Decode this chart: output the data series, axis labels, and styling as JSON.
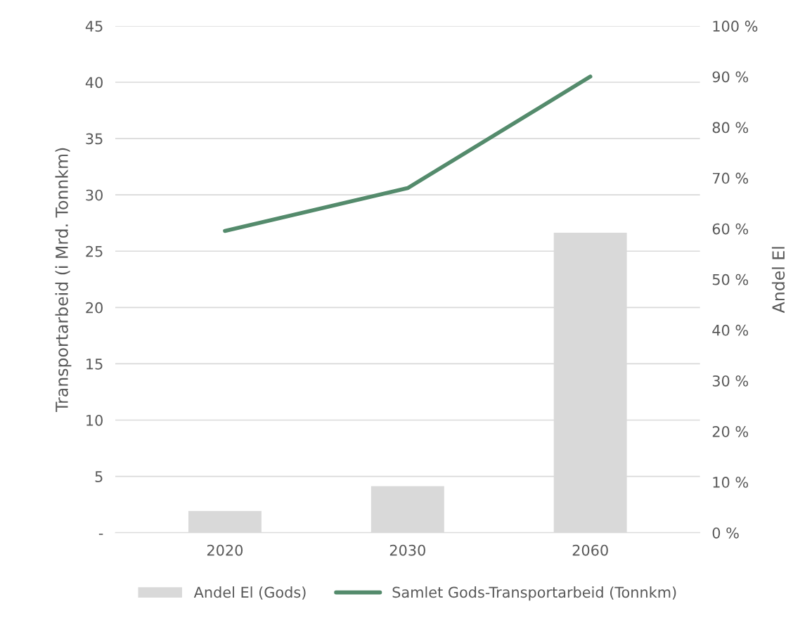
{
  "chart_data": {
    "type": "bar",
    "categories": [
      "2020",
      "2030",
      "2060"
    ],
    "series": [
      {
        "name": "Andel El (Gods)",
        "axis": "y2",
        "color": "#d9d9d9",
        "values": [
          4.3,
          9.2,
          59.2
        ]
      },
      {
        "name": "Samlet Gods-Transportarbeid (Tonnkm)",
        "type": "line",
        "axis": "y",
        "color": "#548b6c",
        "values": [
          26.8,
          30.6,
          40.5
        ]
      }
    ],
    "ylabel": "Transportarbeid (i Mrd. Tonnkm)",
    "y2label": "Andel El",
    "ylim": [
      0,
      45
    ],
    "yticks": [
      {
        "value": 0,
        "label": "-"
      },
      5,
      10,
      15,
      20,
      25,
      30,
      35,
      40,
      45
    ],
    "y2lim": [
      0,
      100
    ],
    "y2ticks": [
      {
        "value": 0,
        "label": "0 %"
      },
      {
        "value": 10,
        "label": "10 %"
      },
      {
        "value": 20,
        "label": "20 %"
      },
      {
        "value": 30,
        "label": "30 %"
      },
      {
        "value": 40,
        "label": "40 %"
      },
      {
        "value": 50,
        "label": "50 %"
      },
      {
        "value": 60,
        "label": "60 %"
      },
      {
        "value": 70,
        "label": "70 %"
      },
      {
        "value": 80,
        "label": "80 %"
      },
      {
        "value": 90,
        "label": "90 %"
      },
      {
        "value": 100,
        "label": "100 %"
      }
    ],
    "grid": "y",
    "legend": "bottom",
    "marker": "none",
    "line_style": "solid"
  }
}
